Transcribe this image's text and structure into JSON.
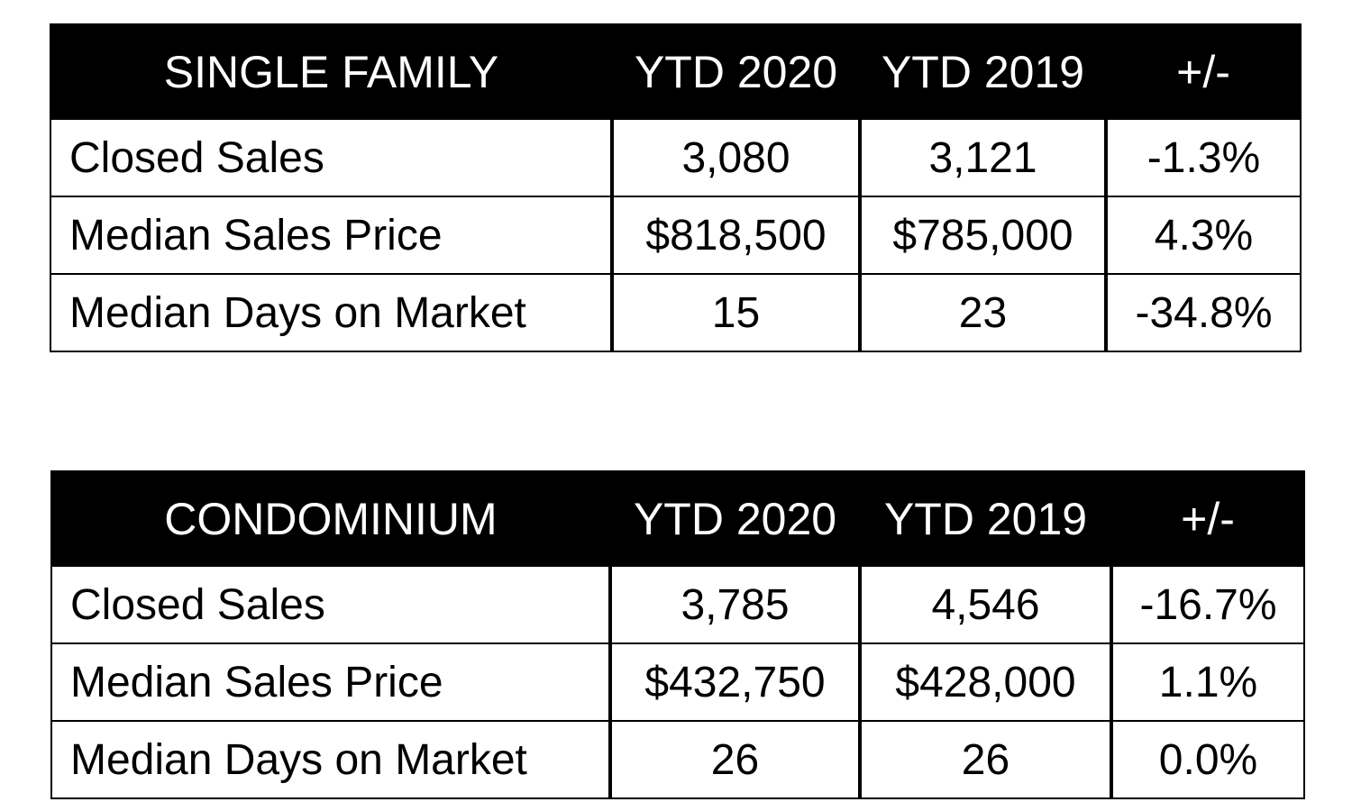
{
  "tables": [
    {
      "title": "SINGLE FAMILY",
      "columns": [
        "YTD 2020",
        "YTD 2019",
        "+/-"
      ],
      "rows": [
        {
          "metric": "Closed Sales",
          "ytd_2020": "3,080",
          "ytd_2019": "3,121",
          "change": "-1.3%"
        },
        {
          "metric": "Median Sales Price",
          "ytd_2020": "$818,500",
          "ytd_2019": "$785,000",
          "change": "4.3%"
        },
        {
          "metric": "Median Days on Market",
          "ytd_2020": "15",
          "ytd_2019": "23",
          "change": "-34.8%"
        }
      ]
    },
    {
      "title": "CONDOMINIUM",
      "columns": [
        "YTD 2020",
        "YTD 2019",
        "+/-"
      ],
      "rows": [
        {
          "metric": "Closed Sales",
          "ytd_2020": "3,785",
          "ytd_2019": "4,546",
          "change": "-16.7%"
        },
        {
          "metric": "Median Sales Price",
          "ytd_2020": "$432,750",
          "ytd_2019": "$428,000",
          "change": "1.1%"
        },
        {
          "metric": "Median Days on Market",
          "ytd_2020": "26",
          "ytd_2019": "26",
          "change": "0.0%"
        }
      ]
    }
  ]
}
